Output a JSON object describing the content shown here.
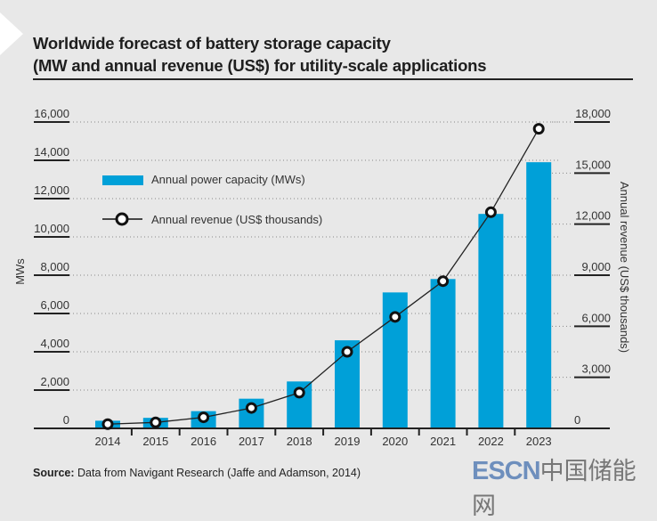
{
  "title_line1": "Worldwide forecast of battery storage capacity",
  "title_line2": "(MW and annual revenue (US$) for utility-scale applications",
  "source_label": "Source:",
  "source_text": " Data from Navigant Research (Jaffe and Adamson, 2014)",
  "watermark": {
    "en": "ESCN",
    "cn": "中国储能网"
  },
  "colors": {
    "bar": "#00a0d8",
    "line": "#222222",
    "background": "#e8e8e8"
  },
  "chart_data": {
    "type": "bar",
    "title": "Worldwide forecast of battery storage capacity (MW and annual revenue (US$) for utility-scale applications",
    "categories": [
      "2014",
      "2015",
      "2016",
      "2017",
      "2018",
      "2019",
      "2020",
      "2021",
      "2022",
      "2023"
    ],
    "series": [
      {
        "name": "Annual power capacity (MWs)",
        "type": "bar",
        "axis": "left",
        "values": [
          400,
          550,
          900,
          1550,
          2450,
          4600,
          7100,
          7800,
          11200,
          13900
        ]
      },
      {
        "name": "Annual revenue (US$ thousands)",
        "type": "line",
        "axis": "right",
        "values": [
          250,
          350,
          650,
          1200,
          2100,
          4500,
          6550,
          8650,
          12700,
          17600
        ]
      }
    ],
    "ylabel": "MWs",
    "y2label": "Annual revenue (US$ thousands)",
    "ylim": [
      0,
      16000
    ],
    "y2lim": [
      0,
      18000
    ],
    "yticks": [
      "0",
      "2,000",
      "4,000",
      "6,000",
      "8,000",
      "10,000",
      "12,000",
      "14,000",
      "16,000"
    ],
    "y2ticks": [
      "0",
      "3,000",
      "6,000",
      "9,000",
      "12,000",
      "15,000",
      "18,000"
    ],
    "grid": true,
    "legend_position": "top-left"
  }
}
